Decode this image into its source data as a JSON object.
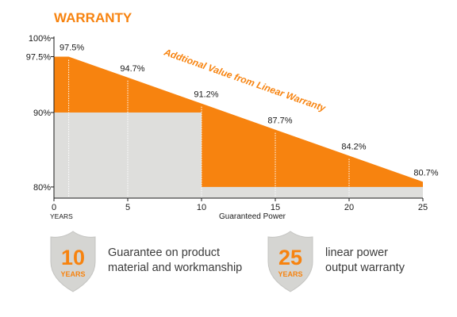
{
  "colors": {
    "accent": "#f7830f",
    "gray": "#dededc",
    "text": "#1a1a1a",
    "white_line": "#ffffff",
    "shield": "#d5d5d2"
  },
  "chart_data": {
    "type": "area",
    "title": "WARRANTY",
    "annotation": "Addtional Value from Linear Warranty",
    "x_unit_label": "YEARS",
    "xlabel": "Guaranteed Power",
    "xlim": [
      0,
      25
    ],
    "ylim": [
      78.5,
      100
    ],
    "x_ticks": [
      0,
      5,
      10,
      15,
      20,
      25
    ],
    "y_ticks": [
      {
        "value": 100,
        "label": "100%"
      },
      {
        "value": 97.5,
        "label": "97.5%"
      },
      {
        "value": 90,
        "label": "90%"
      },
      {
        "value": 80,
        "label": "80%"
      }
    ],
    "grid": false,
    "series": [
      {
        "type": "line",
        "points": [
          {
            "x": 0,
            "y": 97.5
          },
          {
            "x": 1,
            "y": 97.5
          },
          {
            "x": 5,
            "y": 94.7
          },
          {
            "x": 10,
            "y": 91.2
          },
          {
            "x": 15,
            "y": 87.7
          },
          {
            "x": 20,
            "y": 84.2
          },
          {
            "x": 25,
            "y": 80.7
          }
        ],
        "data_labels": [
          {
            "x": 1,
            "y": 97.5,
            "label": "97.5%"
          },
          {
            "x": 5,
            "y": 94.7,
            "label": "94.7%"
          },
          {
            "x": 10,
            "y": 91.2,
            "label": "91.2%"
          },
          {
            "x": 15,
            "y": 87.7,
            "label": "87.7%"
          },
          {
            "x": 20,
            "y": 84.2,
            "label": "84.2%"
          },
          {
            "x": 25,
            "y": 80.7,
            "label": "80.7%"
          }
        ]
      },
      {
        "type": "step",
        "steps": [
          {
            "x0": 0,
            "x1": 10,
            "y": 90
          },
          {
            "x0": 10,
            "x1": 25,
            "y": 80
          }
        ]
      }
    ]
  },
  "badges": [
    {
      "number": "10",
      "unit": "YEARS",
      "line1": "Guarantee on product",
      "line2": "material and workmanship"
    },
    {
      "number": "25",
      "unit": "YEARS",
      "line1": "linear power",
      "line2": "output warranty"
    }
  ]
}
